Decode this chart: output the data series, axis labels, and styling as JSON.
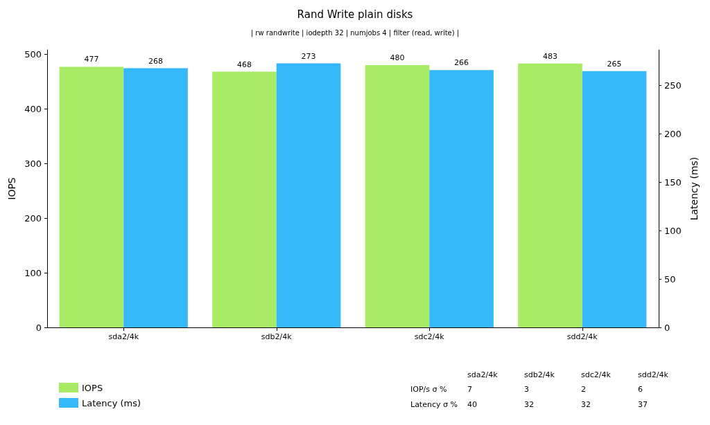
{
  "chart_data": {
    "type": "bar",
    "title": "Rand Write plain disks",
    "subtitle": "| rw randwrite | iodepth 32 | numjobs 4 | filter (read, write) |",
    "ylabel": "IOPS",
    "y2label": "Latency (ms)",
    "categories": [
      "sda2/4k",
      "sdb2/4k",
      "sdc2/4k",
      "sdd2/4k"
    ],
    "series": [
      {
        "name": "IOPS",
        "color": "#a8eb65",
        "values": [
          477,
          468,
          480,
          483
        ]
      },
      {
        "name": "Latency (ms)",
        "color": "#35b8f9",
        "values": [
          268,
          273,
          266,
          265
        ],
        "axis": "y2"
      }
    ],
    "ylim": [
      0,
      508
    ],
    "yticks": [
      0,
      100,
      200,
      300,
      400,
      500
    ],
    "y2lim": [
      0,
      287
    ],
    "y2ticks": [
      0,
      50,
      100,
      150,
      200,
      250
    ],
    "data_labels": true,
    "grid": false,
    "legend": "bottom left",
    "annotations": [
      "IOP/s σ %\t7\t3\t2\t6",
      "Latency σ %\t40\t32\t32\t37"
    ]
  }
}
